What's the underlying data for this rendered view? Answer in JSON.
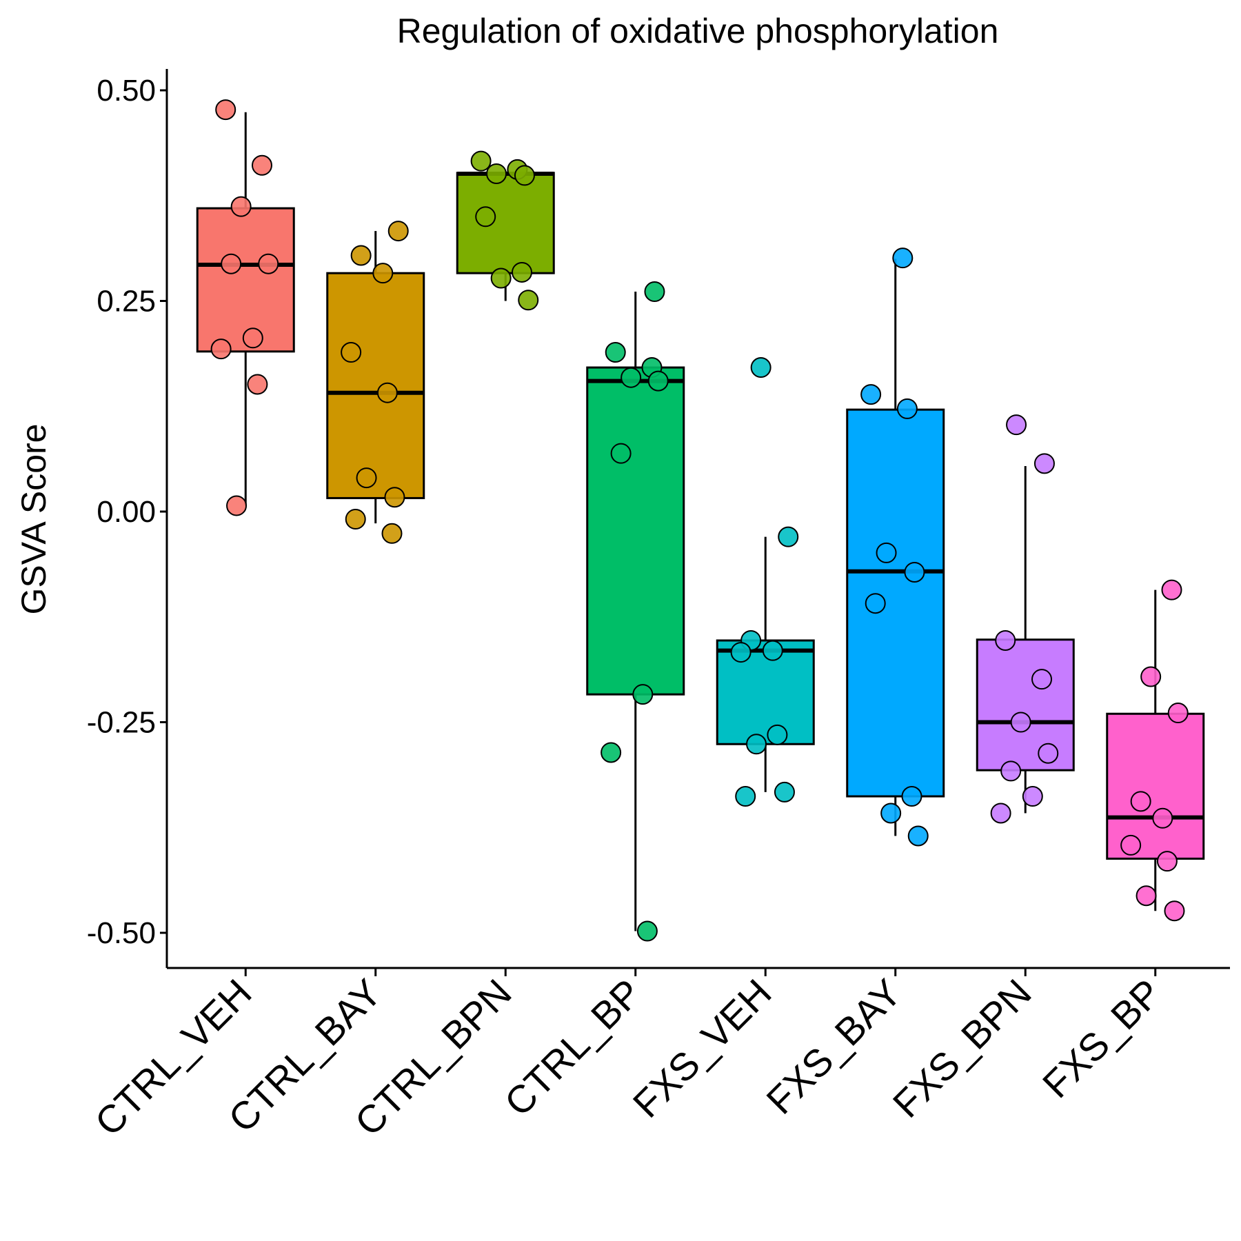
{
  "chart_data": {
    "type": "box",
    "title": "Regulation of oxidative phosphorylation",
    "xlabel": "",
    "ylabel": "GSVA Score",
    "ylim": [
      -0.55,
      0.54
    ],
    "yticks": [
      0.5,
      0.25,
      0.0,
      -0.25,
      -0.5
    ],
    "ytick_labels": [
      "0.50",
      "0.25",
      "0.00",
      "-0.25",
      "-0.50"
    ],
    "categories": [
      "CTRL_VEH",
      "CTRL_BAY",
      "CTRL_BPN",
      "CTRL_BP",
      "FXS_VEH",
      "FXS_BAY",
      "FXS_BPN",
      "FXS_BP"
    ],
    "grid": false,
    "legend": "none",
    "groups": [
      {
        "name": "CTRL_VEH",
        "color": "#F8766D",
        "box": {
          "whisker_low": 0.007,
          "q1": 0.19,
          "median": 0.293,
          "q3": 0.36,
          "whisker_high": 0.474
        },
        "points": [
          0.477,
          0.411,
          0.362,
          0.294,
          0.294,
          0.206,
          0.193,
          0.151,
          0.007
        ]
      },
      {
        "name": "CTRL_BAY",
        "color": "#CD9600",
        "box": {
          "whisker_low": -0.014,
          "q1": 0.016,
          "median": 0.141,
          "q3": 0.283,
          "whisker_high": 0.333
        },
        "points": [
          0.333,
          0.304,
          0.283,
          0.189,
          0.141,
          0.04,
          0.017,
          -0.009,
          -0.026
        ]
      },
      {
        "name": "CTRL_BPN",
        "color": "#7CAE00",
        "box": {
          "whisker_low": 0.25,
          "q1": 0.283,
          "median": 0.401,
          "q3": 0.402,
          "whisker_high": 0.403
        },
        "points": [
          0.416,
          0.406,
          0.401,
          0.399,
          0.35,
          0.284,
          0.277,
          0.251
        ]
      },
      {
        "name": "CTRL_BP",
        "color": "#00BE67",
        "box": {
          "whisker_low": -0.498,
          "q1": -0.217,
          "median": 0.155,
          "q3": 0.171,
          "whisker_high": 0.261
        },
        "points": [
          0.261,
          0.189,
          0.171,
          0.159,
          0.155,
          0.069,
          -0.217,
          -0.286,
          -0.498
        ]
      },
      {
        "name": "FXS_VEH",
        "color": "#00BFC4",
        "box": {
          "whisker_low": -0.333,
          "q1": -0.276,
          "median": -0.165,
          "q3": -0.153,
          "whisker_high": -0.03
        },
        "points": [
          0.171,
          -0.03,
          -0.153,
          -0.165,
          -0.167,
          -0.265,
          -0.276,
          -0.333,
          -0.338
        ]
      },
      {
        "name": "FXS_BAY",
        "color": "#00A9FF",
        "box": {
          "whisker_low": -0.385,
          "q1": -0.338,
          "median": -0.071,
          "q3": 0.121,
          "whisker_high": 0.3
        },
        "points": [
          0.301,
          0.139,
          0.122,
          -0.049,
          -0.072,
          -0.109,
          -0.338,
          -0.358,
          -0.385
        ]
      },
      {
        "name": "FXS_BPN",
        "color": "#C77CFF",
        "box": {
          "whisker_low": -0.358,
          "q1": -0.307,
          "median": -0.25,
          "q3": -0.152,
          "whisker_high": 0.054
        },
        "points": [
          0.103,
          0.057,
          -0.153,
          -0.199,
          -0.25,
          -0.287,
          -0.308,
          -0.338,
          -0.358
        ]
      },
      {
        "name": "FXS_BP",
        "color": "#FF61CC",
        "box": {
          "whisker_low": -0.474,
          "q1": -0.412,
          "median": -0.363,
          "q3": -0.24,
          "whisker_high": -0.093
        },
        "points": [
          -0.093,
          -0.196,
          -0.239,
          -0.344,
          -0.364,
          -0.396,
          -0.415,
          -0.456,
          -0.474
        ]
      }
    ]
  }
}
